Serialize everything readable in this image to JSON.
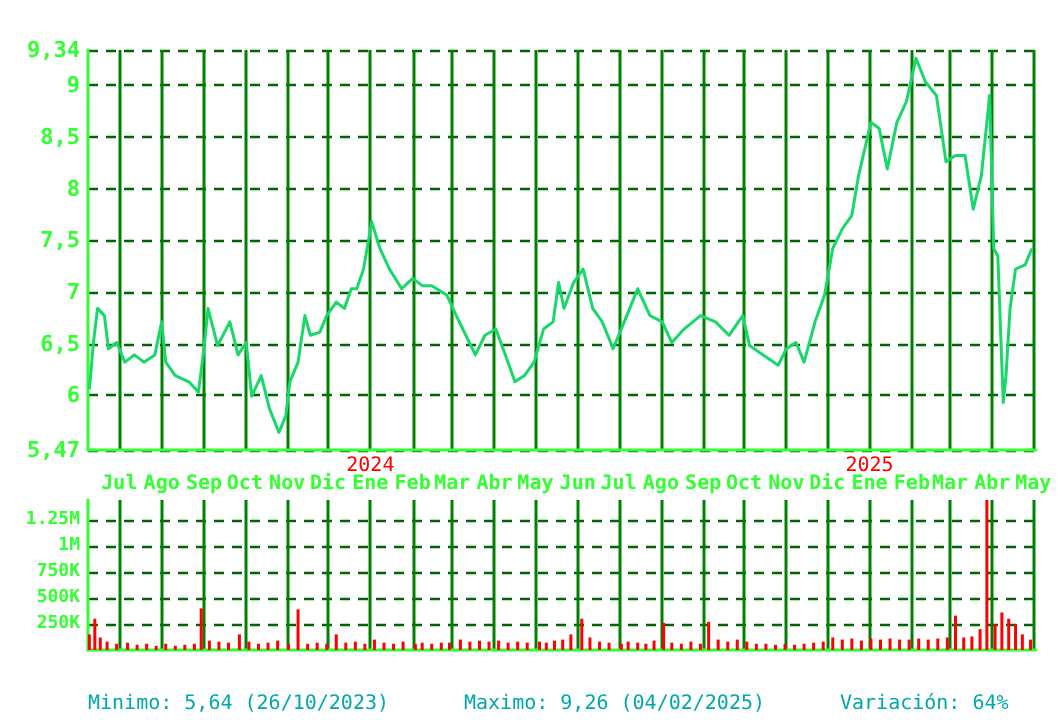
{
  "chart_data": [
    {
      "type": "line",
      "marker": "none",
      "grid": true,
      "tick_labels": true,
      "xlim": [
        "2023-06-08",
        "2025-05-03"
      ],
      "xticks": [
        {
          "value": "2023-07-01",
          "label": "Jul"
        },
        {
          "value": "2023-08-01",
          "label": "Ago"
        },
        {
          "value": "2023-09-01",
          "label": "Sep"
        },
        {
          "value": "2023-10-01",
          "label": "Oct"
        },
        {
          "value": "2023-11-01",
          "label": "Nov"
        },
        {
          "value": "2023-12-01",
          "label": "Dic"
        },
        {
          "value": "2024-01-01",
          "label": "Ene"
        },
        {
          "value": "2024-02-01",
          "label": "Feb"
        },
        {
          "value": "2024-03-01",
          "label": "Mar"
        },
        {
          "value": "2024-04-01",
          "label": "Abr"
        },
        {
          "value": "2024-05-01",
          "label": "May"
        },
        {
          "value": "2024-06-01",
          "label": "Jun"
        },
        {
          "value": "2024-07-01",
          "label": "Jul"
        },
        {
          "value": "2024-08-01",
          "label": "Ago"
        },
        {
          "value": "2024-09-01",
          "label": "Sep"
        },
        {
          "value": "2024-10-01",
          "label": "Oct"
        },
        {
          "value": "2024-11-01",
          "label": "Nov"
        },
        {
          "value": "2024-12-01",
          "label": "Dic"
        },
        {
          "value": "2025-01-01",
          "label": "Ene"
        },
        {
          "value": "2025-02-01",
          "label": "Feb"
        },
        {
          "value": "2025-03-01",
          "label": "Mar"
        },
        {
          "value": "2025-04-01",
          "label": "Abr"
        },
        {
          "value": "2025-05-01",
          "label": "May"
        }
      ],
      "ylim": [
        5.47,
        9.34
      ],
      "yticks": [
        {
          "value": 5.47,
          "label": "5,47"
        },
        6,
        {
          "value": 6.5,
          "label": "6,5"
        },
        7,
        {
          "value": 7.5,
          "label": "7,5"
        },
        8,
        {
          "value": 8.5,
          "label": "8,5"
        },
        9,
        {
          "value": 9.34,
          "label": "9,34"
        }
      ],
      "x2lim": [
        "2023-06-08",
        "2025-05-03"
      ],
      "x2ticks": [
        {
          "value": "2024-01-01",
          "label": "2024"
        },
        {
          "value": "2025-01-01",
          "label": "2025"
        }
      ],
      "x": [
        "2023-06-09",
        "2023-06-12",
        "2023-06-15",
        "2023-06-20",
        "2023-06-23",
        "2023-06-29",
        "2023-07-05",
        "2023-07-12",
        "2023-07-19",
        "2023-07-27",
        "2023-08-01",
        "2023-08-04",
        "2023-08-11",
        "2023-08-21",
        "2023-08-28",
        "2023-09-01",
        "2023-09-04",
        "2023-09-11",
        "2023-09-20",
        "2023-09-26",
        "2023-10-02",
        "2023-10-06",
        "2023-10-13",
        "2023-10-19",
        "2023-10-26",
        "2023-10-31",
        "2023-11-03",
        "2023-11-09",
        "2023-11-14",
        "2023-11-18",
        "2023-11-25",
        "2023-11-30",
        "2023-12-07",
        "2023-12-13",
        "2023-12-18",
        "2023-12-22",
        "2023-12-27",
        "2024-01-02",
        "2024-01-08",
        "2024-01-15",
        "2024-01-24",
        "2024-02-01",
        "2024-02-08",
        "2024-02-15",
        "2024-02-26",
        "2024-03-04",
        "2024-03-11",
        "2024-03-18",
        "2024-03-25",
        "2024-04-02",
        "2024-04-09",
        "2024-04-16",
        "2024-04-23",
        "2024-04-30",
        "2024-05-07",
        "2024-05-14",
        "2024-05-18",
        "2024-05-22",
        "2024-05-29",
        "2024-06-05",
        "2024-06-12",
        "2024-06-19",
        "2024-06-27",
        "2024-07-07",
        "2024-07-15",
        "2024-07-24",
        "2024-08-02",
        "2024-08-09",
        "2024-08-18",
        "2024-08-30",
        "2024-09-10",
        "2024-09-20",
        "2024-09-30",
        "2024-10-05",
        "2024-10-15",
        "2024-10-26",
        "2024-11-01",
        "2024-11-08",
        "2024-11-14",
        "2024-11-22",
        "2024-11-29",
        "2024-12-05",
        "2024-12-12",
        "2024-12-19",
        "2024-12-24",
        "2025-01-02",
        "2025-01-08",
        "2025-01-14",
        "2025-01-21",
        "2025-01-28",
        "2025-02-04",
        "2025-02-11",
        "2025-02-19",
        "2025-02-26",
        "2025-03-05",
        "2025-03-12",
        "2025-03-18",
        "2025-03-24",
        "2025-03-30",
        "2025-04-02",
        "2025-04-05",
        "2025-04-09",
        "2025-04-11",
        "2025-04-14",
        "2025-04-18",
        "2025-04-25",
        "2025-04-30"
      ],
      "series": [
        {
          "color": "#19d86a",
          "values": [
            6.06,
            6.51,
            6.84,
            6.77,
            6.45,
            6.51,
            6.32,
            6.39,
            6.32,
            6.39,
            6.71,
            6.32,
            6.19,
            6.13,
            6.03,
            6.45,
            6.84,
            6.48,
            6.71,
            6.39,
            6.51,
            5.99,
            6.19,
            5.87,
            5.64,
            5.8,
            6.13,
            6.32,
            6.77,
            6.58,
            6.61,
            6.77,
            6.9,
            6.84,
            7.03,
            7.03,
            7.22,
            7.68,
            7.42,
            7.22,
            7.03,
            7.13,
            7.06,
            7.06,
            6.97,
            6.77,
            6.58,
            6.39,
            6.58,
            6.64,
            6.39,
            6.13,
            6.19,
            6.32,
            6.64,
            6.71,
            7.09,
            6.84,
            7.09,
            7.22,
            6.84,
            6.71,
            6.45,
            6.77,
            7.03,
            6.77,
            6.71,
            6.51,
            6.64,
            6.77,
            6.71,
            6.58,
            6.77,
            6.48,
            6.39,
            6.29,
            6.45,
            6.51,
            6.32,
            6.71,
            6.97,
            7.42,
            7.61,
            7.74,
            8.13,
            8.64,
            8.58,
            8.19,
            8.64,
            8.84,
            9.26,
            9.03,
            8.9,
            8.26,
            8.32,
            8.32,
            7.8,
            8.13,
            8.9,
            7.42,
            7.35,
            5.93,
            6.19,
            6.84,
            7.22,
            7.26,
            7.42
          ]
        }
      ]
    },
    {
      "type": "bar",
      "grid": true,
      "tick_labels": "y",
      "xlim": [
        "2023-06-08",
        "2025-05-03"
      ],
      "xticks": [
        "2023-07-01",
        "2023-08-01",
        "2023-09-01",
        "2023-10-01",
        "2023-11-01",
        "2023-12-01",
        "2024-01-01",
        "2024-02-01",
        "2024-03-01",
        "2024-04-01",
        "2024-05-01",
        "2024-06-01",
        "2024-07-01",
        "2024-08-01",
        "2024-09-01",
        "2024-10-01",
        "2024-11-01",
        "2024-12-01",
        "2025-01-01",
        "2025-02-01",
        "2025-03-01",
        "2025-04-01",
        "2025-05-01"
      ],
      "ylim": [
        0,
        1440000
      ],
      "yticks": [
        {
          "value": 250000,
          "label": "250K"
        },
        {
          "value": 500000,
          "label": "500K"
        },
        {
          "value": 750000,
          "label": "750K"
        },
        {
          "value": 1000000,
          "label": "1M"
        },
        {
          "value": 1250000,
          "label": "1.25M"
        }
      ],
      "annotations": [
        "Minimo: 5,64 (26/10/2023)",
        "Maximo: 9,26 (04/02/2025)",
        "Variación: 64%"
      ],
      "x": [
        "2023-06-09",
        "2023-06-13",
        "2023-06-17",
        "2023-06-22",
        "2023-06-29",
        "2023-07-07",
        "2023-07-14",
        "2023-07-21",
        "2023-07-28",
        "2023-08-04",
        "2023-08-11",
        "2023-08-18",
        "2023-08-25",
        "2023-08-30",
        "2023-09-05",
        "2023-09-12",
        "2023-09-19",
        "2023-09-27",
        "2023-10-04",
        "2023-10-11",
        "2023-10-18",
        "2023-10-25",
        "2023-11-02",
        "2023-11-09",
        "2023-11-16",
        "2023-11-23",
        "2023-11-30",
        "2023-12-07",
        "2023-12-14",
        "2023-12-21",
        "2023-12-28",
        "2024-01-04",
        "2024-01-11",
        "2024-01-18",
        "2024-01-25",
        "2024-02-03",
        "2024-02-08",
        "2024-02-15",
        "2024-02-22",
        "2024-02-28",
        "2024-03-07",
        "2024-03-14",
        "2024-03-21",
        "2024-03-28",
        "2024-04-04",
        "2024-04-11",
        "2024-04-18",
        "2024-04-25",
        "2024-05-04",
        "2024-05-09",
        "2024-05-15",
        "2024-05-21",
        "2024-05-27",
        "2024-06-04",
        "2024-06-10",
        "2024-06-17",
        "2024-06-24",
        "2024-07-03",
        "2024-07-08",
        "2024-07-15",
        "2024-07-21",
        "2024-07-27",
        "2024-08-03",
        "2024-08-09",
        "2024-08-16",
        "2024-08-23",
        "2024-08-30",
        "2024-09-05",
        "2024-09-12",
        "2024-09-19",
        "2024-09-26",
        "2024-10-03",
        "2024-10-10",
        "2024-10-17",
        "2024-10-24",
        "2024-10-31",
        "2024-11-07",
        "2024-11-14",
        "2024-11-21",
        "2024-11-28",
        "2024-12-05",
        "2024-12-12",
        "2024-12-19",
        "2024-12-26",
        "2025-01-02",
        "2025-01-09",
        "2025-01-16",
        "2025-01-23",
        "2025-01-30",
        "2025-02-06",
        "2025-02-13",
        "2025-02-20",
        "2025-02-27",
        "2025-03-05",
        "2025-03-11",
        "2025-03-17",
        "2025-03-23",
        "2025-03-28",
        "2025-04-03",
        "2025-04-08",
        "2025-04-13",
        "2025-04-18",
        "2025-04-23",
        "2025-04-29"
      ],
      "series": [
        {
          "color": "#ff0000",
          "values": [
            150000,
            300000,
            120000,
            80000,
            60000,
            70000,
            50000,
            60000,
            40000,
            60000,
            40000,
            50000,
            60000,
            400000,
            90000,
            80000,
            70000,
            150000,
            80000,
            60000,
            70000,
            90000,
            60000,
            390000,
            60000,
            70000,
            60000,
            150000,
            70000,
            80000,
            60000,
            100000,
            70000,
            60000,
            80000,
            60000,
            70000,
            60000,
            70000,
            70000,
            100000,
            80000,
            90000,
            80000,
            90000,
            70000,
            80000,
            70000,
            80000,
            70000,
            90000,
            100000,
            150000,
            300000,
            120000,
            80000,
            70000,
            60000,
            80000,
            70000,
            60000,
            90000,
            260000,
            70000,
            60000,
            80000,
            60000,
            270000,
            100000,
            80000,
            100000,
            80000,
            60000,
            60000,
            50000,
            60000,
            50000,
            60000,
            70000,
            80000,
            120000,
            100000,
            110000,
            90000,
            110000,
            100000,
            110000,
            100000,
            100000,
            110000,
            100000,
            110000,
            120000,
            330000,
            120000,
            130000,
            200000,
            1440000,
            250000,
            360000,
            300000,
            250000,
            150000,
            100000
          ]
        }
      ]
    }
  ]
}
